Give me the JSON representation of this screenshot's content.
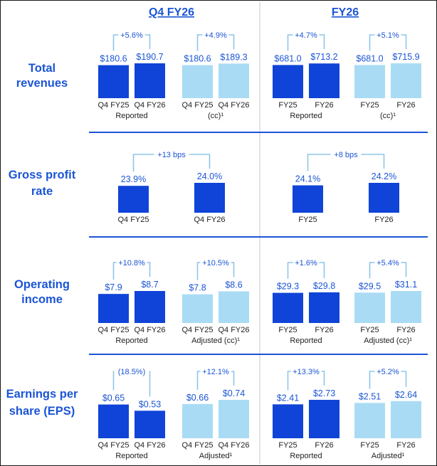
{
  "colors": {
    "dark_bar": "#1044d8",
    "light_bar": "#a9dcf4",
    "accent": "#1b55d6",
    "bracket": "#8ec5e8",
    "separator": "#1b55d6"
  },
  "chart_data": {
    "type": "bar",
    "title": "",
    "column_titles": [
      "Q4 FY26",
      "FY26"
    ],
    "rows": [
      {
        "title_lines": [
          "Total",
          "revenues"
        ],
        "groups": [
          {
            "column": 0,
            "label": "Reported",
            "shade": "dark",
            "categories": [
              "Q4 FY25",
              "Q4 FY26"
            ],
            "values": [
              180.6,
              190.7
            ],
            "labels": [
              "$180.6",
              "$190.7"
            ],
            "change": "+5.6%"
          },
          {
            "column": 0,
            "label": "(cc)¹",
            "shade": "light",
            "categories": [
              "Q4 FY25",
              "Q4 FY26"
            ],
            "values": [
              180.6,
              189.3
            ],
            "labels": [
              "$180.6",
              "$189.3"
            ],
            "change": "+4.9%"
          },
          {
            "column": 1,
            "label": "Reported",
            "shade": "dark",
            "categories": [
              "FY25",
              "FY26"
            ],
            "values": [
              681.0,
              713.2
            ],
            "labels": [
              "$681.0",
              "$713.2"
            ],
            "change": "+4.7%"
          },
          {
            "column": 1,
            "label": "(cc)¹",
            "shade": "light",
            "categories": [
              "FY25",
              "FY26"
            ],
            "values": [
              681.0,
              715.9
            ],
            "labels": [
              "$681.0",
              "$715.9"
            ],
            "change": "+5.1%"
          }
        ]
      },
      {
        "title_lines": [
          "Gross profit",
          "rate"
        ],
        "groups": [
          {
            "column": 0,
            "label": "",
            "shade": "dark",
            "categories": [
              "Q4 FY25",
              "Q4 FY26"
            ],
            "values": [
              23.9,
              24.0
            ],
            "labels": [
              "23.9%",
              "24.0%"
            ],
            "change": "+13 bps",
            "wide": true
          },
          {
            "column": 1,
            "label": "",
            "shade": "dark",
            "categories": [
              "FY25",
              "FY26"
            ],
            "values": [
              24.1,
              24.2
            ],
            "labels": [
              "24.1%",
              "24.2%"
            ],
            "change": "+8 bps",
            "wide": true
          }
        ]
      },
      {
        "title_lines": [
          "Operating",
          "income"
        ],
        "groups": [
          {
            "column": 0,
            "label": "Reported",
            "shade": "dark",
            "categories": [
              "Q4 FY25",
              "Q4 FY26"
            ],
            "values": [
              7.9,
              8.7
            ],
            "labels": [
              "$7.9",
              "$8.7"
            ],
            "change": "+10.8%"
          },
          {
            "column": 0,
            "label": "Adjusted (cc)¹",
            "shade": "light",
            "categories": [
              "Q4 FY25",
              "Q4 FY26"
            ],
            "values": [
              7.8,
              8.6
            ],
            "labels": [
              "$7.8",
              "$8.6"
            ],
            "change": "+10.5%"
          },
          {
            "column": 1,
            "label": "Reported",
            "shade": "dark",
            "categories": [
              "FY25",
              "FY26"
            ],
            "values": [
              29.3,
              29.8
            ],
            "labels": [
              "$29.3",
              "$29.8"
            ],
            "change": "+1.6%"
          },
          {
            "column": 1,
            "label": "Adjusted (cc)¹",
            "shade": "light",
            "categories": [
              "FY25",
              "FY26"
            ],
            "values": [
              29.5,
              31.1
            ],
            "labels": [
              "$29.5",
              "$31.1"
            ],
            "change": "+5.4%"
          }
        ]
      },
      {
        "title_lines": [
          "Earnings per",
          "share (EPS)"
        ],
        "groups": [
          {
            "column": 0,
            "label": "Reported",
            "shade": "dark",
            "categories": [
              "Q4 FY25",
              "Q4 FY26"
            ],
            "values": [
              0.65,
              0.53
            ],
            "labels": [
              "$0.65",
              "$0.53"
            ],
            "change": "(18.5%)"
          },
          {
            "column": 0,
            "label": "Adjusted¹",
            "shade": "light",
            "categories": [
              "Q4 FY25",
              "Q4 FY26"
            ],
            "values": [
              0.66,
              0.74
            ],
            "labels": [
              "$0.66",
              "$0.74"
            ],
            "change": "+12.1%"
          },
          {
            "column": 1,
            "label": "Reported",
            "shade": "dark",
            "categories": [
              "FY25",
              "FY26"
            ],
            "values": [
              2.41,
              2.73
            ],
            "labels": [
              "$2.41",
              "$2.73"
            ],
            "change": "+13.3%"
          },
          {
            "column": 1,
            "label": "Adjusted¹",
            "shade": "light",
            "categories": [
              "FY25",
              "FY26"
            ],
            "values": [
              2.51,
              2.64
            ],
            "labels": [
              "$2.51",
              "$2.64"
            ],
            "change": "+5.2%"
          }
        ]
      }
    ]
  }
}
